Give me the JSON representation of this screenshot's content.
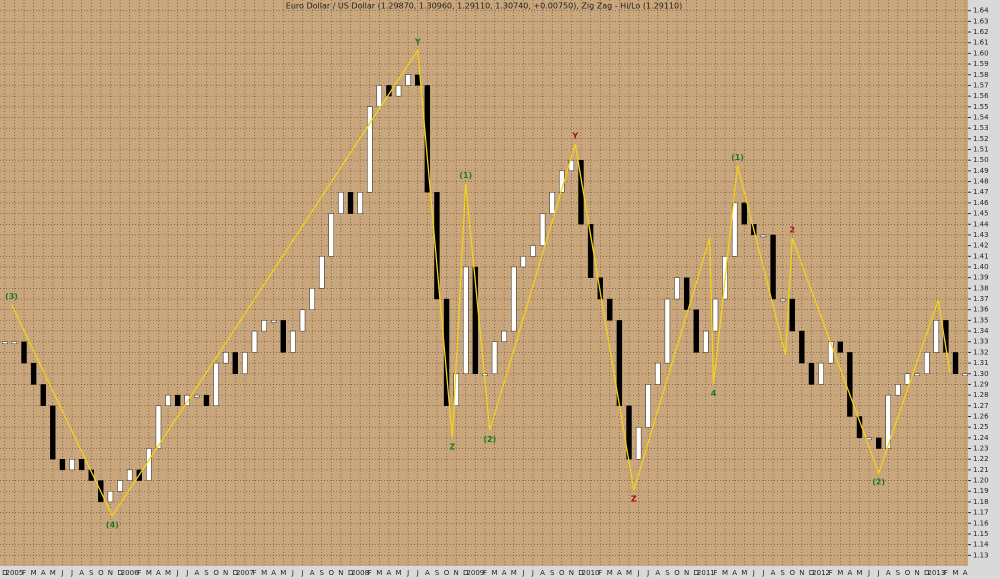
{
  "chart_data": {
    "type": "ohlc",
    "title": "Euro Dollar / US Dollar (1.29870, 1.30960, 1.29110, 1.30740, +0.00750), Zig Zag - Hi/Lo (1.29110)",
    "categories": [
      "D",
      "2005",
      "F",
      "M",
      "A",
      "M",
      "J",
      "J",
      "A",
      "S",
      "O",
      "N",
      "D",
      "2006",
      "F",
      "M",
      "A",
      "M",
      "J",
      "J",
      "A",
      "S",
      "O",
      "N",
      "D",
      "2007",
      "F",
      "M",
      "A",
      "M",
      "J",
      "J",
      "A",
      "S",
      "O",
      "N",
      "D",
      "2008",
      "F",
      "M",
      "A",
      "M",
      "J",
      "J",
      "A",
      "S",
      "O",
      "N",
      "D",
      "2009",
      "F",
      "M",
      "A",
      "M",
      "J",
      "J",
      "A",
      "S",
      "O",
      "N",
      "D",
      "2010",
      "F",
      "M",
      "A",
      "M",
      "J",
      "J",
      "A",
      "S",
      "O",
      "N",
      "D",
      "2011",
      "F",
      "M",
      "A",
      "M",
      "J",
      "J",
      "A",
      "S",
      "O",
      "N",
      "D",
      "2012",
      "F",
      "M",
      "A",
      "M",
      "J",
      "J",
      "A",
      "S",
      "O",
      "N",
      "D",
      "2013",
      "F",
      "M",
      "A"
    ],
    "series": [
      {
        "name": "EUR/USD",
        "up_color": "#ffffff",
        "down_color": "#000000",
        "values": [
          1.33,
          1.33,
          1.31,
          1.29,
          1.27,
          1.22,
          1.21,
          1.22,
          1.21,
          1.2,
          1.18,
          1.19,
          1.2,
          1.21,
          1.2,
          1.23,
          1.27,
          1.28,
          1.27,
          1.28,
          1.28,
          1.27,
          1.31,
          1.32,
          1.3,
          1.32,
          1.34,
          1.35,
          1.35,
          1.32,
          1.34,
          1.36,
          1.38,
          1.41,
          1.45,
          1.47,
          1.45,
          1.47,
          1.55,
          1.57,
          1.56,
          1.57,
          1.58,
          1.57,
          1.47,
          1.37,
          1.27,
          1.3,
          1.4,
          1.3,
          1.3,
          1.33,
          1.34,
          1.4,
          1.41,
          1.42,
          1.45,
          1.47,
          1.49,
          1.5,
          1.44,
          1.39,
          1.37,
          1.35,
          1.27,
          1.22,
          1.25,
          1.29,
          1.31,
          1.37,
          1.39,
          1.36,
          1.32,
          1.34,
          1.37,
          1.41,
          1.46,
          1.44,
          1.43,
          1.43,
          1.37,
          1.37,
          1.34,
          1.31,
          1.29,
          1.31,
          1.33,
          1.32,
          1.26,
          1.24,
          1.24,
          1.23,
          1.28,
          1.29,
          1.3,
          1.3,
          1.32,
          1.35,
          1.32,
          1.3,
          1.3
        ]
      }
    ],
    "zigzag": {
      "color": "#f2d21a",
      "x": [
        0.7,
        11.2,
        43,
        46.6,
        48,
        50.5,
        59.4,
        65.5,
        73.4,
        73.8,
        76.3,
        81.3,
        82,
        91,
        97.2,
        98.4
      ],
      "y": [
        1.365,
        1.167,
        1.603,
        1.24,
        1.478,
        1.247,
        1.515,
        1.191,
        1.427,
        1.29,
        1.495,
        1.318,
        1.427,
        1.207,
        1.369,
        1.302
      ],
      "labels": [
        "(3)",
        "(4)",
        "Y",
        "Z",
        "(1)",
        "(2)",
        "Y",
        "Z",
        null,
        "4",
        "(1)",
        null,
        "2",
        "(2)",
        null,
        null
      ],
      "label_colors": [
        "#1f7a1f",
        "#1f7a1f",
        "#1f7a1f",
        "#1f7a1f",
        "#1f7a1f",
        "#1f7a1f",
        "#a01010",
        "#a01010",
        null,
        "#1f7a1f",
        "#1f7a1f",
        null,
        "#a01010",
        "#1f7a1f",
        null,
        null
      ]
    },
    "xlim": [
      -0.5,
      100.3
    ],
    "ylim": [
      1.12,
      1.65
    ],
    "yticks": [
      1.13,
      1.14,
      1.15,
      1.16,
      1.17,
      1.18,
      1.19,
      {
        "value": 1.2,
        "label": "1.20"
      },
      1.21,
      1.22,
      1.23,
      1.24,
      1.25,
      1.26,
      1.27,
      1.28,
      1.29,
      {
        "value": 1.3,
        "label": "1.30"
      },
      1.31,
      1.32,
      1.33,
      1.34,
      1.35,
      1.36,
      1.37,
      1.38,
      1.39,
      {
        "value": 1.4,
        "label": "1.40"
      },
      1.41,
      1.42,
      1.43,
      1.44,
      1.45,
      1.46,
      1.47,
      1.48,
      1.49,
      {
        "value": 1.5,
        "label": "1.50"
      },
      1.51,
      1.52,
      1.53,
      1.54,
      1.55,
      1.56,
      1.57,
      1.58,
      1.59,
      {
        "value": 1.6,
        "label": "1.60"
      },
      1.61,
      1.62,
      1.63,
      1.64
    ],
    "grid": true
  }
}
